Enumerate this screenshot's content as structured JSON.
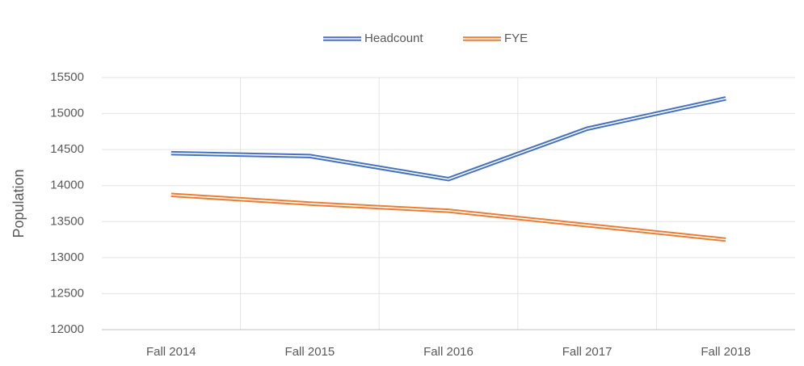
{
  "chart_data": {
    "type": "line",
    "y_label": "Population",
    "categories": [
      "Fall 2014",
      "Fall 2015",
      "Fall 2016",
      "Fall 2017",
      "Fall 2018"
    ],
    "series": [
      {
        "name": "Headcount",
        "color": "#4472c4",
        "values": [
          14450,
          14410,
          14090,
          14790,
          15210
        ]
      },
      {
        "name": "FYE",
        "color": "#ed7d31",
        "values": [
          13870,
          13750,
          13650,
          13450,
          13250
        ]
      }
    ],
    "ylim": [
      12000,
      15500
    ],
    "yticks": [
      12000,
      12500,
      13000,
      13500,
      14000,
      14500,
      15000,
      15500
    ],
    "grid": true,
    "legend": "top"
  }
}
